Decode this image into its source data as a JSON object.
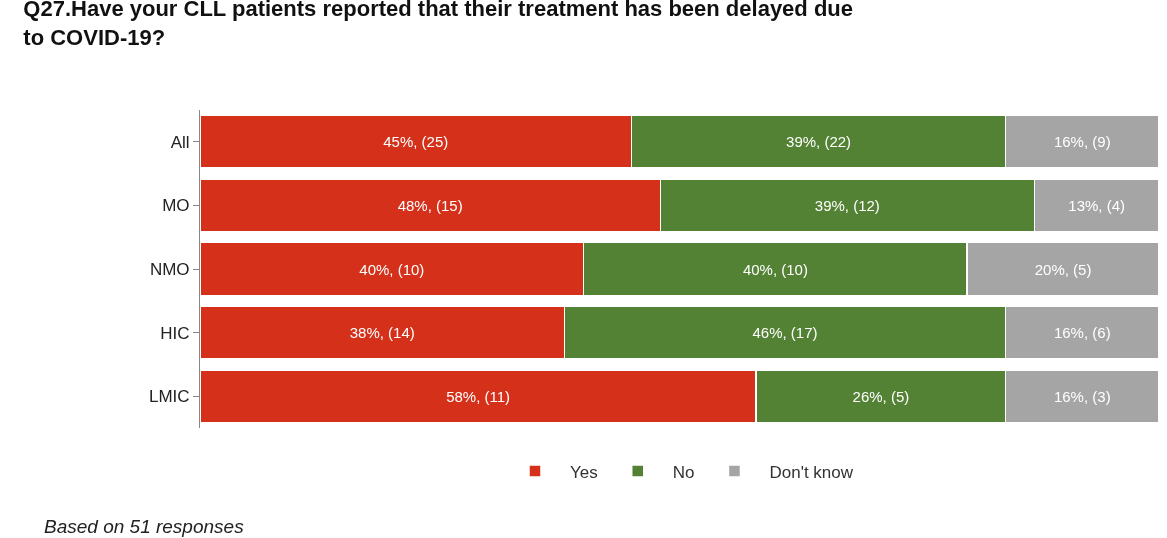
{
  "chart_data": {
    "type": "bar",
    "orientation": "horizontal",
    "stacked": true,
    "title": "Q27.Have your CLL patients reported that their treatment has been delayed due to COVID-19?",
    "categories": [
      "All",
      "MO",
      "NMO",
      "HIC",
      "LMIC"
    ],
    "series": [
      {
        "name": "Yes",
        "color": "#d5301a",
        "values": [
          45,
          48,
          40,
          38,
          58
        ],
        "value_labels": [
          "45%, (25)",
          "48%, (15)",
          "40%, (10)",
          "38%, (14)",
          "58%, (11)"
        ]
      },
      {
        "name": "No",
        "color": "#548235",
        "values": [
          39,
          39,
          40,
          46,
          26
        ],
        "value_labels": [
          "39%, (22)",
          "39%, (12)",
          "40%, (10)",
          "46%, (17)",
          "26%, (5)"
        ]
      },
      {
        "name": "Don't know",
        "color": "#a5a5a5",
        "values": [
          16,
          13,
          20,
          16,
          16
        ],
        "value_labels": [
          "16%, (9)",
          "13%, (4)",
          "20%, (5)",
          "16%, (6)",
          "16%, (3)"
        ]
      }
    ],
    "xlim": [
      0,
      100
    ],
    "tick_labels": "y",
    "legend": "bottom",
    "annotations": [
      "Based on 51 responses"
    ]
  }
}
